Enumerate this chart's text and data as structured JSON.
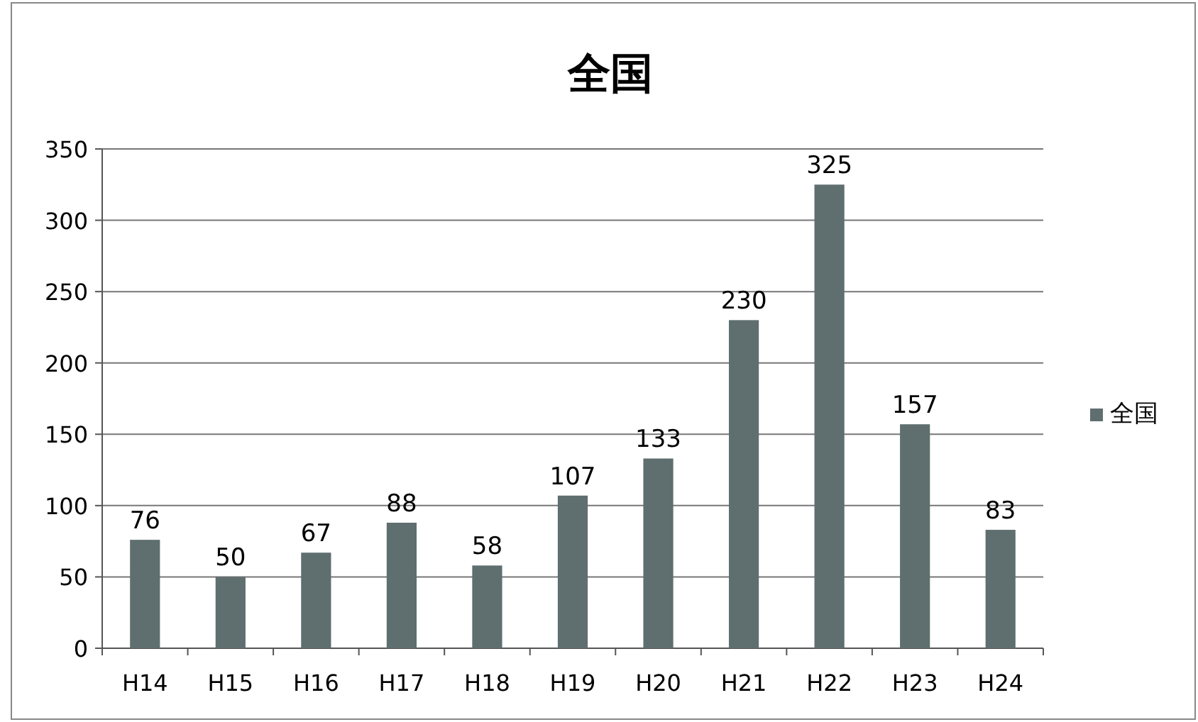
{
  "chart_data": {
    "type": "bar",
    "title": "全国",
    "categories": [
      "H14",
      "H15",
      "H16",
      "H17",
      "H18",
      "H19",
      "H20",
      "H21",
      "H22",
      "H23",
      "H24"
    ],
    "series": [
      {
        "name": "全国",
        "color": "#5f6e6e",
        "values": [
          76,
          50,
          67,
          88,
          58,
          107,
          133,
          230,
          325,
          157,
          83
        ]
      }
    ],
    "ylim": [
      0,
      350
    ],
    "yticks": [
      0,
      50,
      100,
      150,
      200,
      250,
      300,
      350
    ],
    "grid": "y",
    "legend": "right",
    "data_labels": true
  }
}
